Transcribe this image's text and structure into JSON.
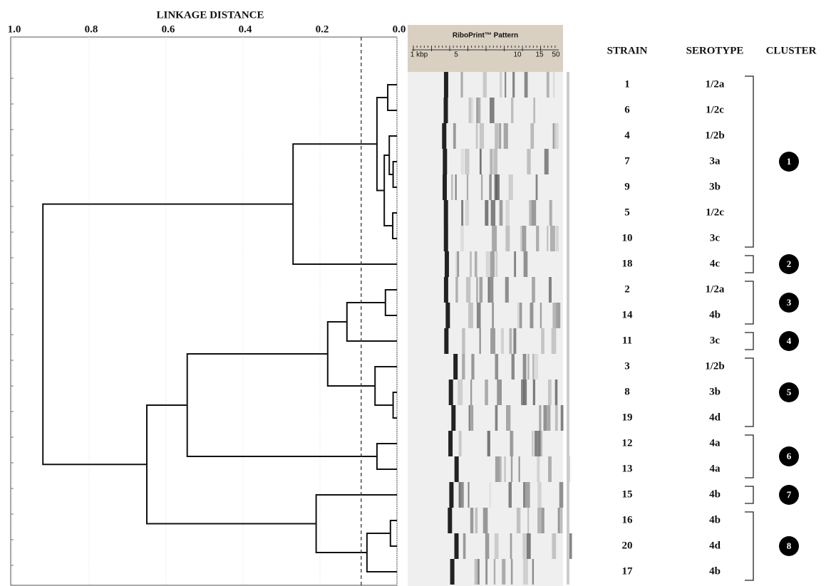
{
  "chart_data": {
    "type": "dendrogram",
    "title": "LINKAGE DISTANCE",
    "xlim": [
      1,
      0
    ],
    "xticks": [
      {
        "value": 1,
        "label": "1.0"
      },
      0.8,
      0.6,
      0.4,
      0.2,
      {
        "value": 0,
        "label": "0.0"
      }
    ],
    "grid": true,
    "color": "#111111",
    "cutoff": 0.093,
    "merges": [
      [
        0,
        1,
        0.024
      ],
      [
        3,
        4,
        0.01
      ],
      [
        2,
        21,
        0.02
      ],
      [
        5,
        6,
        0.011
      ],
      [
        22,
        23,
        0.033
      ],
      [
        20,
        24,
        0.052
      ],
      [
        25,
        7,
        0.27
      ],
      [
        8,
        9,
        0.03
      ],
      [
        27,
        10,
        0.13
      ],
      [
        12,
        13,
        0.01
      ],
      [
        11,
        29,
        0.057
      ],
      [
        28,
        30,
        0.18
      ],
      [
        14,
        15,
        0.052
      ],
      [
        31,
        32,
        0.545
      ],
      [
        17,
        18,
        0.017
      ],
      [
        34,
        19,
        0.078
      ],
      [
        16,
        35,
        0.21
      ],
      [
        33,
        36,
        0.65
      ],
      [
        26,
        37,
        0.92
      ]
    ]
  },
  "riboprint": {
    "title": "RiboPrint™ Pattern",
    "scale": [
      "1 kbp",
      "5",
      "10",
      "15",
      "50"
    ]
  },
  "table": {
    "header": [
      "STRAIN",
      "SEROTYPE",
      "CLUSTER"
    ],
    "rows": [
      [
        "1",
        "1/2a",
        "1"
      ],
      [
        "6",
        "1/2c",
        "1"
      ],
      [
        "4",
        "1/2b",
        "1"
      ],
      [
        "7",
        "3a",
        "1"
      ],
      [
        "9",
        "3b",
        "1"
      ],
      [
        "5",
        "1/2c",
        "1"
      ],
      [
        "10",
        "3c",
        "1"
      ],
      [
        "18",
        "4c",
        "2"
      ],
      [
        "2",
        "1/2a",
        "3"
      ],
      [
        "14",
        "4b",
        "3"
      ],
      [
        "11",
        "3c",
        "4"
      ],
      [
        "3",
        "1/2b",
        "5"
      ],
      [
        "8",
        "3b",
        "5"
      ],
      [
        "19",
        "4d",
        "5"
      ],
      [
        "12",
        "4a",
        "6"
      ],
      [
        "13",
        "4a",
        "6"
      ],
      [
        "15",
        "4b",
        "7"
      ],
      [
        "16",
        "4b",
        "8"
      ],
      [
        "20",
        "4d",
        "8"
      ],
      [
        "17",
        "4b",
        "8"
      ]
    ]
  }
}
